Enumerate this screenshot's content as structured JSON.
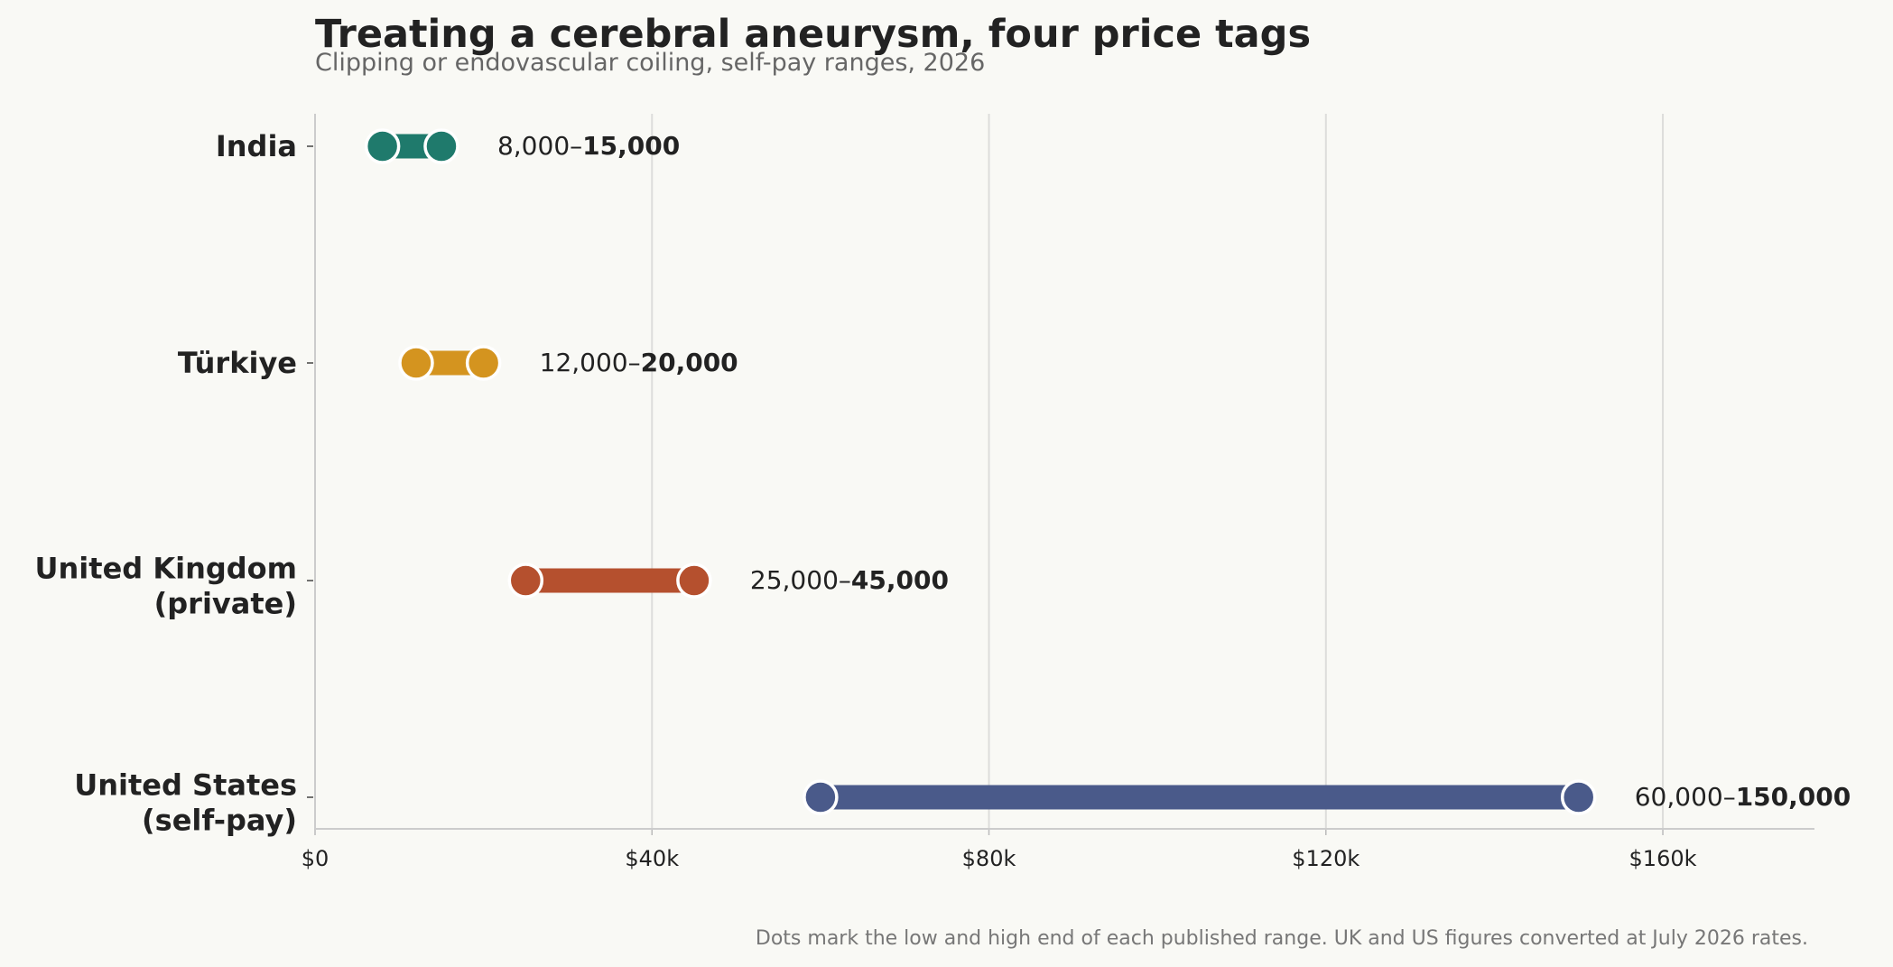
{
  "chart_data": {
    "type": "dumbbell",
    "title": "Treating a cerebral aneurysm, four price tags",
    "subtitle": "Clipping or endovascular coiling, self-pay ranges, 2026",
    "footnote": "Dots mark the low and high end of each published range. UK and US figures converted at July 2026 rates.",
    "xlim": [
      0,
      178000
    ],
    "x_ticks": [
      {
        "value": 0,
        "label": "$0"
      },
      {
        "value": 40000,
        "label": "$40k"
      },
      {
        "value": 80000,
        "label": "$80k"
      },
      {
        "value": 120000,
        "label": "$120k"
      },
      {
        "value": 160000,
        "label": "$160k"
      }
    ],
    "grid": true,
    "categories": [
      {
        "lines": [
          "India"
        ],
        "low": 8000,
        "high": 15000,
        "low_label": "8,000–",
        "high_label": "15,000",
        "color": "#1f7a6c"
      },
      {
        "lines": [
          "Türkiye"
        ],
        "low": 12000,
        "high": 20000,
        "low_label": "12,000–",
        "high_label": "20,000",
        "color": "#d4941f"
      },
      {
        "lines": [
          "United Kingdom",
          "(private)"
        ],
        "low": 25000,
        "high": 45000,
        "low_label": "25,000–",
        "high_label": "45,000",
        "color": "#b5502e"
      },
      {
        "lines": [
          "United States",
          "(self-pay)"
        ],
        "low": 60000,
        "high": 150000,
        "low_label": "60,000–",
        "high_label": "150,000",
        "color": "#4a5a8a"
      }
    ]
  }
}
